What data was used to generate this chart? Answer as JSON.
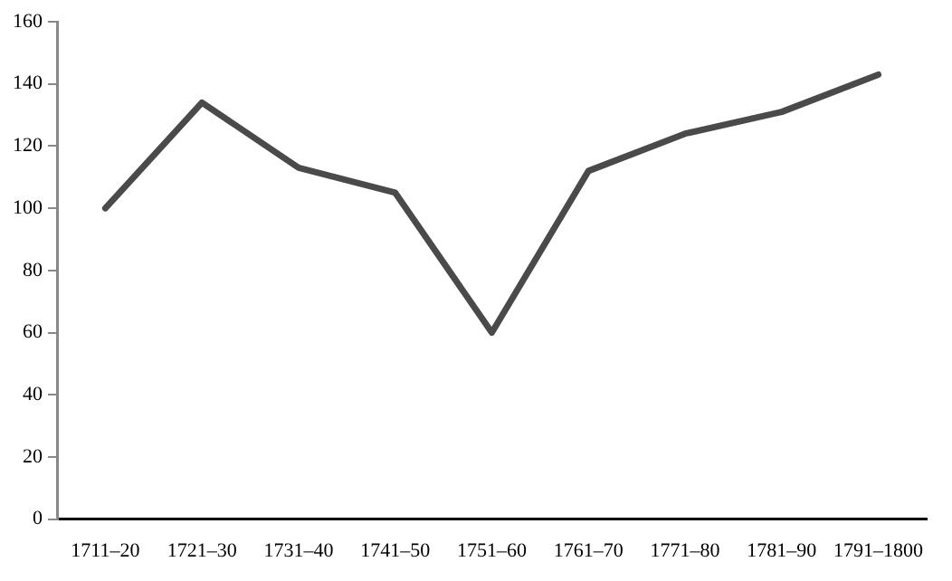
{
  "chart_data": {
    "type": "line",
    "categories": [
      "1711–20",
      "1721–30",
      "1731–40",
      "1741–50",
      "1751–60",
      "1761–70",
      "1771–80",
      "1781–90",
      "1791–1800"
    ],
    "values": [
      100,
      134,
      113,
      105,
      60,
      112,
      124,
      131,
      143
    ],
    "color": "#4a4a4a",
    "ylim": [
      0,
      160
    ],
    "yticks": [
      0,
      20,
      40,
      60,
      80,
      100,
      120,
      140,
      160
    ],
    "grid": false,
    "legend": false,
    "marker": "none",
    "line_style": "solid"
  }
}
